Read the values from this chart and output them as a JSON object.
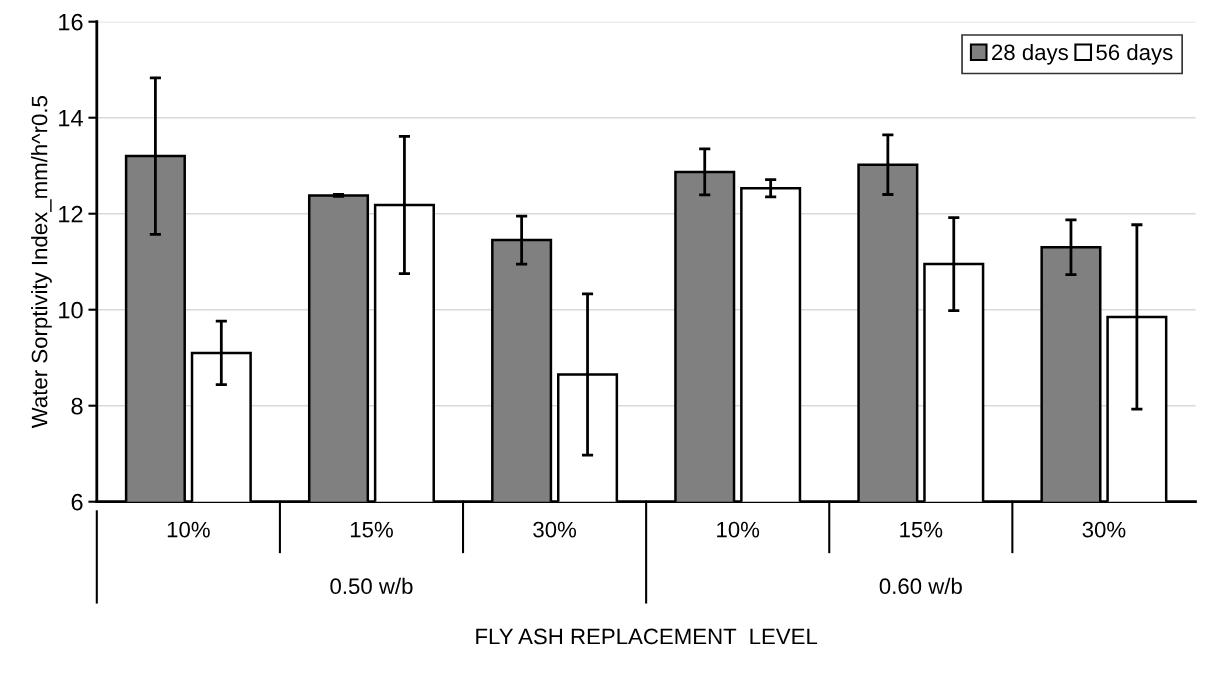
{
  "chart_data": {
    "type": "bar",
    "ylabel": "Water Sorptivity Index_mm/h^r0.5",
    "xlabel": "FLY ASH REPLACEMENT  LEVEL",
    "categories": [
      "10%",
      "15%",
      "30%",
      "10%",
      "15%",
      "30%"
    ],
    "series": [
      {
        "name": "28 days",
        "color": "#808080",
        "values": [
          13.2,
          12.38,
          11.45,
          12.87,
          13.02,
          11.3
        ],
        "errors": [
          1.63,
          0.02,
          0.5,
          0.48,
          0.62,
          0.57
        ]
      },
      {
        "name": "56 days",
        "color": "#ffffff",
        "values": [
          9.1,
          12.18,
          8.65,
          12.53,
          10.95,
          9.85
        ],
        "errors": [
          0.66,
          1.43,
          1.68,
          0.18,
          0.97,
          1.92
        ]
      }
    ],
    "annotations": [
      "0.50 w/b",
      "0.60 w/b"
    ],
    "ylim": [
      6,
      16
    ],
    "yticks": [
      6,
      8,
      10,
      12,
      14,
      16
    ],
    "grid": "y",
    "legend": "top right"
  }
}
